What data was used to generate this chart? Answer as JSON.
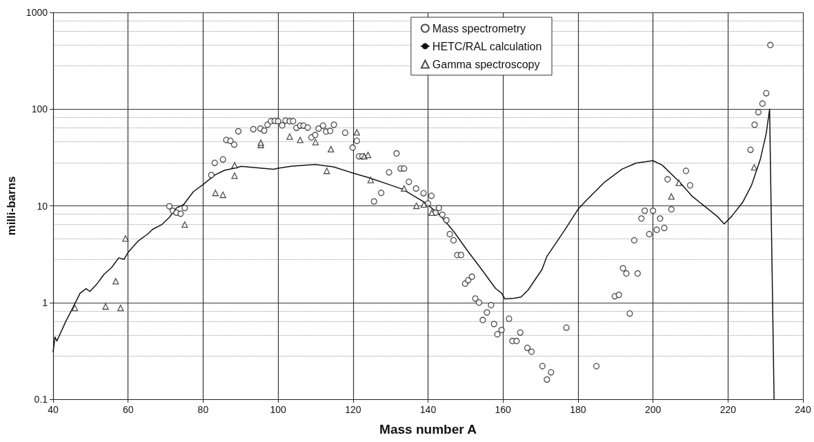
{
  "chart_data": {
    "type": "scatter",
    "xlabel": "Mass number A",
    "ylabel": "milli-barns",
    "log": "y",
    "grid": true,
    "legend": "top right",
    "xlim": [
      40,
      240
    ],
    "xticks": [
      40,
      60,
      80,
      100,
      120,
      140,
      160,
      180,
      200,
      220,
      240
    ],
    "ylim": [
      0.1,
      1000
    ],
    "yticks": [
      0.1,
      1,
      10,
      100,
      1000
    ],
    "series": [
      {
        "name": "Mass spectrometry",
        "marker": "circle",
        "color": "#222222",
        "x": [
          71,
          71.9,
          72.9,
          74,
          75.1,
          82.2,
          83.1,
          85.3,
          86.2,
          87.3,
          88.3,
          89.4,
          93.4,
          95.3,
          96.3,
          97.2,
          98.1,
          99.1,
          100,
          101.1,
          102,
          103.1,
          104,
          104.9,
          105.9,
          106.8,
          107.9,
          108.9,
          109.9,
          110.8,
          112,
          112.8,
          113.9,
          114.9,
          117.9,
          119.9,
          121,
          121.6,
          122.5,
          125.6,
          127.5,
          129.6,
          131.6,
          132.7,
          133.6,
          134.9,
          136.8,
          138.8,
          140,
          140.9,
          142,
          142.9,
          143.8,
          144.9,
          145.8,
          146.8,
          147.8,
          148.8,
          149.9,
          150.7,
          151.7,
          152.6,
          153.6,
          154.6,
          155.7,
          156.8,
          157.6,
          158.5,
          159.6,
          161.6,
          162.5,
          163.6,
          164.6,
          166.5,
          167.6,
          170.5,
          171.7,
          172.8,
          176.9,
          184.9,
          189.8,
          190.9,
          192,
          192.9,
          193.8,
          195,
          195.9,
          196.9,
          197.8,
          199,
          200,
          201,
          201.9,
          203,
          203.9,
          204.9,
          208.8,
          209.9,
          226,
          227.1,
          228.1,
          229.2,
          230.2,
          231.3
        ],
        "values": [
          9.9,
          8.9,
          8.5,
          8.3,
          9.5,
          20.8,
          27.8,
          30.2,
          48,
          47,
          43,
          59,
          62,
          63,
          60,
          69,
          75,
          75.5,
          75,
          68,
          76,
          75,
          75,
          64,
          67.5,
          67.5,
          64.5,
          51,
          54,
          63,
          67.5,
          58.6,
          59.6,
          69,
          57,
          40,
          47,
          32.5,
          32.5,
          11.1,
          13.6,
          22.2,
          34.8,
          24.3,
          24.3,
          17.7,
          15.1,
          13.5,
          10.6,
          12.7,
          8.5,
          9.5,
          8.1,
          7.1,
          5.1,
          4.4,
          3.1,
          3.1,
          1.57,
          1.7,
          1.85,
          1.1,
          1,
          0.66,
          0.79,
          0.94,
          0.6,
          0.47,
          0.52,
          0.68,
          0.4,
          0.4,
          0.49,
          0.34,
          0.31,
          0.22,
          0.16,
          0.19,
          0.55,
          0.22,
          1.16,
          1.2,
          2.26,
          2,
          0.77,
          4.4,
          2,
          7.4,
          8.9,
          5.1,
          8.9,
          5.65,
          7.4,
          5.9,
          18.8,
          9.2,
          23,
          16.3,
          38,
          69,
          93,
          114,
          146,
          460
        ]
      },
      {
        "name": "HETC/RAL calculation",
        "type": "line",
        "marker": "none",
        "line_style": "solid",
        "color": "#111111",
        "x": [
          40,
          40.5,
          41,
          43.4,
          45.3,
          47.2,
          48.8,
          49.8,
          51.7,
          53.6,
          55.6,
          57.5,
          58.9,
          60,
          62.6,
          65.2,
          66.5,
          69,
          71,
          72.9,
          74.8,
          77.4,
          80,
          83.1,
          85.7,
          88.3,
          90.2,
          98.8,
          100,
          103.7,
          109.9,
          114.8,
          119.8,
          124.1,
          129.6,
          133.3,
          139.5,
          143.2,
          146.9,
          150.6,
          154.3,
          158,
          159.6,
          160.5,
          163,
          164.8,
          166.7,
          170.4,
          171.7,
          176.3,
          180,
          182.5,
          187.1,
          191.7,
          195.5,
          200,
          202.5,
          207.1,
          210.5,
          214.8,
          217.1,
          219,
          221,
          224,
          226.3,
          228.6,
          230.2,
          231.1,
          232.3
        ],
        "values": [
          0.31,
          0.44,
          0.4,
          0.64,
          0.89,
          1.25,
          1.39,
          1.3,
          1.56,
          1.96,
          2.3,
          2.9,
          2.8,
          3.3,
          4.3,
          5.1,
          5.7,
          6.4,
          7.6,
          9.5,
          10.3,
          14,
          16.6,
          20.8,
          23.3,
          24.5,
          25.6,
          23.9,
          24.5,
          25.7,
          26.8,
          25.3,
          21.9,
          19.6,
          16.6,
          14.8,
          10.6,
          8,
          5.4,
          3.4,
          2.2,
          1.4,
          1.25,
          1.09,
          1.11,
          1.14,
          1.35,
          2.2,
          3,
          5.5,
          9.2,
          11.7,
          17.6,
          23.9,
          27.7,
          29.3,
          26.3,
          17.6,
          12.5,
          9.2,
          7.8,
          6.5,
          7.8,
          11,
          16.4,
          30,
          56,
          100,
          0.1
        ]
      },
      {
        "name": "Gamma spectroscopy",
        "marker": "triangle",
        "color": "#222222",
        "x": [
          45.8,
          54,
          56.7,
          58,
          59.3,
          75.1,
          83.3,
          85.3,
          88.4,
          88.4,
          95.4,
          95.4,
          103.1,
          105.9,
          110,
          113,
          114.1,
          121,
          123,
          124,
          124.7,
          133.6,
          136.9,
          138.9,
          141,
          204.9,
          206.9,
          227
        ],
        "values": [
          0.88,
          0.91,
          1.66,
          0.88,
          4.6,
          6.4,
          13.6,
          13,
          26.3,
          20.5,
          42.6,
          45,
          52,
          48,
          45.6,
          23,
          38.5,
          57.6,
          32.5,
          33.6,
          18.5,
          15.1,
          10,
          10.3,
          8.5,
          12.5,
          17.3,
          25
        ]
      }
    ]
  }
}
